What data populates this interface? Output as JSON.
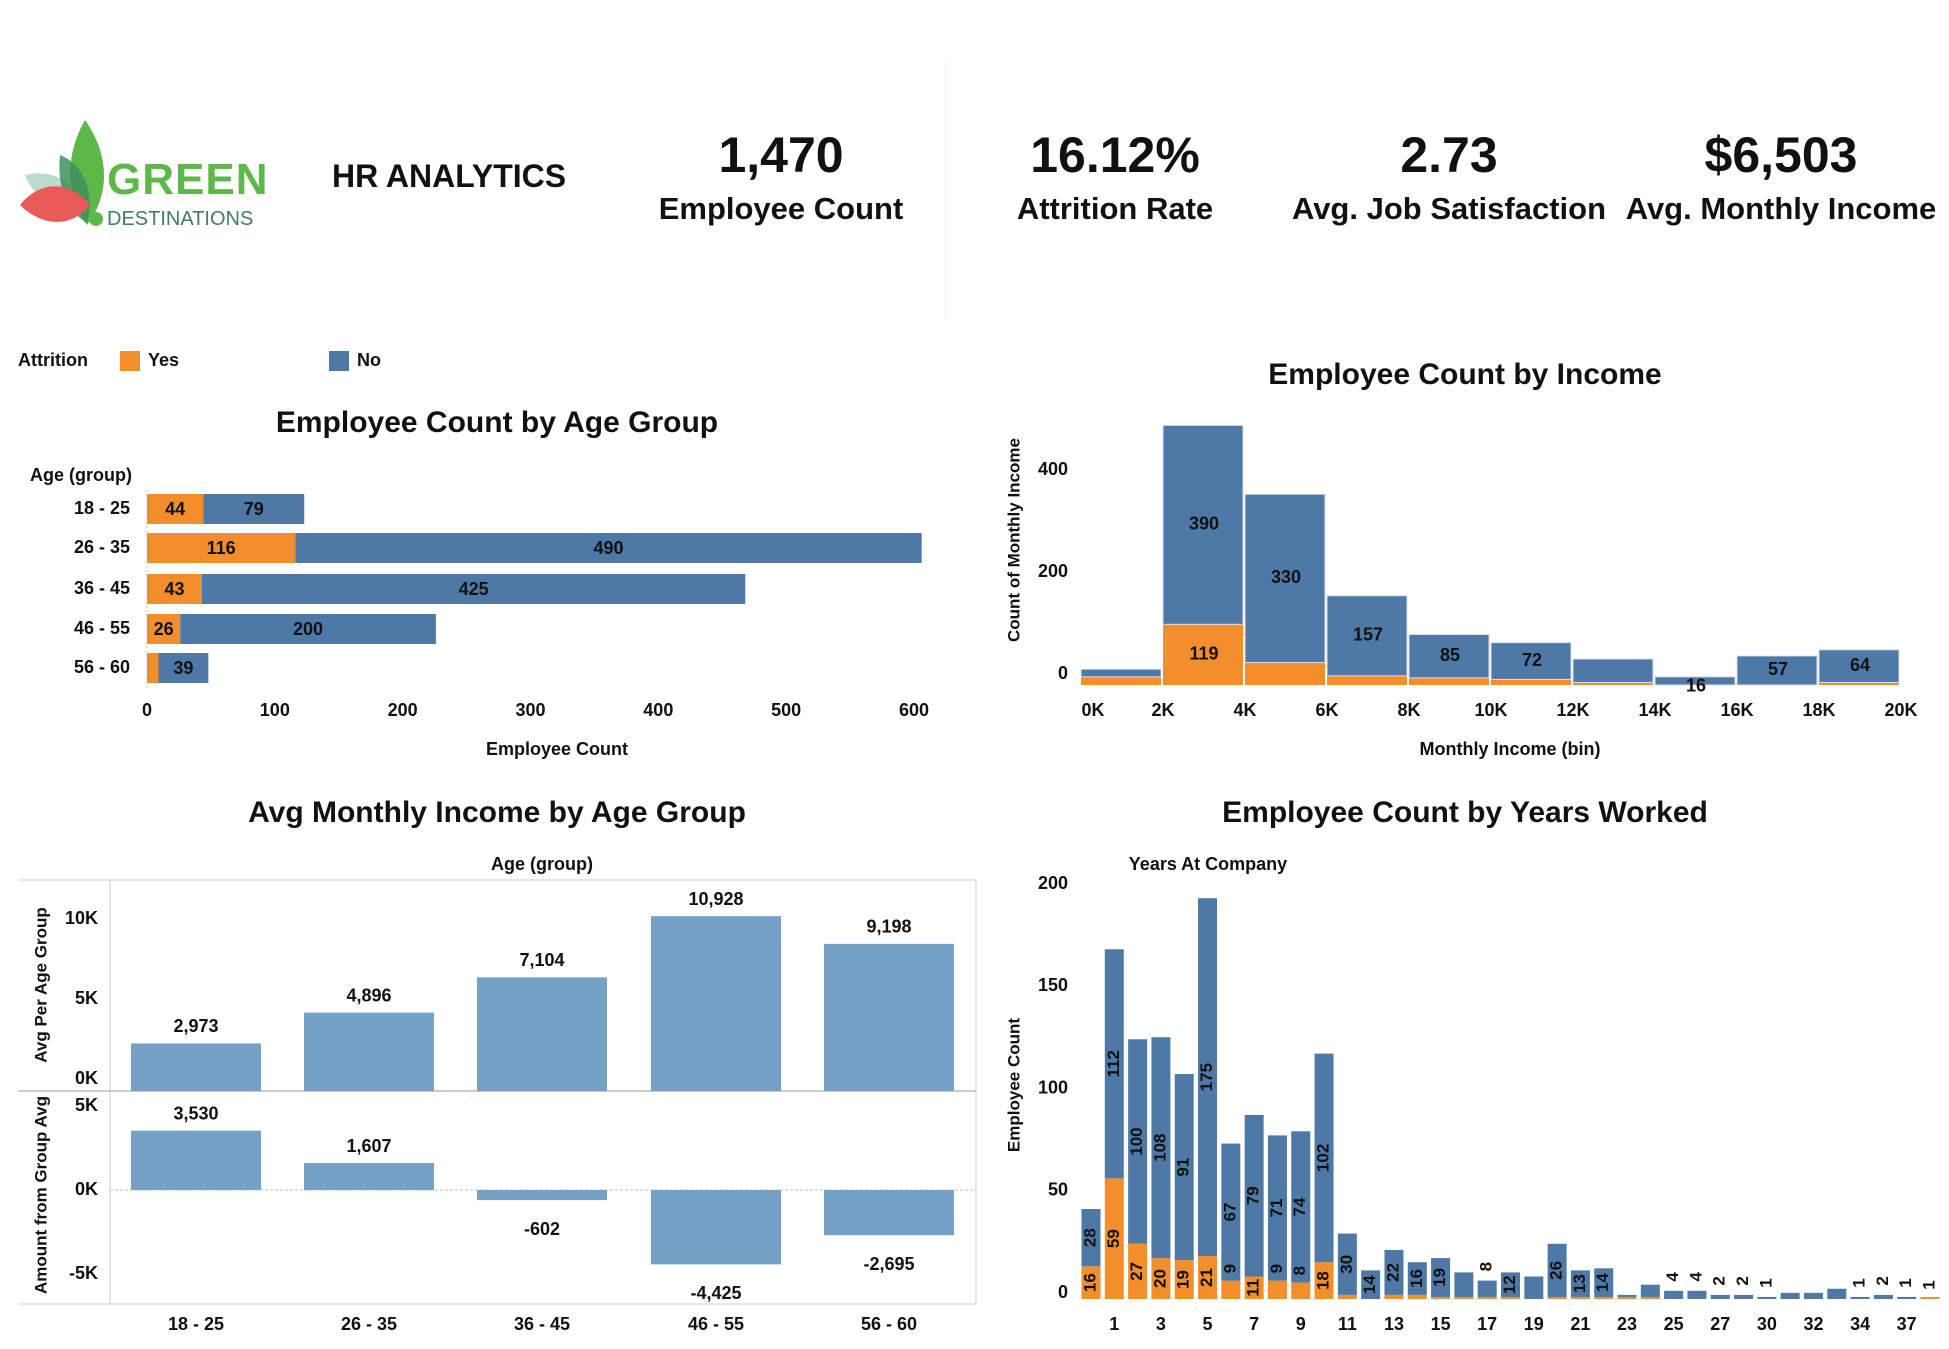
{
  "header": {
    "logo": {
      "line1": "GREEN",
      "line2": "DESTINATIONS"
    },
    "title": "HR ANALYTICS",
    "kpis": [
      {
        "value": "1,470",
        "label": "Employee Count"
      },
      {
        "value": "16.12%",
        "label": "Attrition Rate"
      },
      {
        "value": "2.73",
        "label": "Avg. Job Satisfaction"
      },
      {
        "value": "$6,503",
        "label": "Avg. Monthly Income"
      }
    ]
  },
  "legend": {
    "title": "Attrition",
    "items": [
      {
        "label": "Yes",
        "color": "#f28e2b"
      },
      {
        "label": "No",
        "color": "#4e79a7"
      }
    ]
  },
  "colors": {
    "yes": "#f28e2b",
    "no": "#4e79a7",
    "avg_bar": "#76a1c7"
  },
  "chart_data": [
    {
      "type": "bar",
      "orientation": "horizontal-stacked",
      "title": "Employee Count by Age Group",
      "ylabel": "Age (group)",
      "xlabel": "Employee Count",
      "categories": [
        "18 - 25",
        "26 - 35",
        "36 - 45",
        "46 - 55",
        "56 - 60"
      ],
      "series": [
        {
          "name": "Yes",
          "values": [
            44,
            116,
            43,
            26,
            9
          ],
          "labels": [
            "44",
            "116",
            "43",
            "26",
            null
          ]
        },
        {
          "name": "No",
          "values": [
            79,
            490,
            425,
            200,
            39
          ],
          "labels": [
            "79",
            "490",
            "425",
            "200",
            "39"
          ]
        }
      ],
      "xticks": [
        "0",
        "100",
        "200",
        "300",
        "400",
        "500",
        "600"
      ],
      "xlim": [
        0,
        650
      ]
    },
    {
      "type": "bar",
      "orientation": "histogram-stacked",
      "title": "Employee Count by Income",
      "ylabel": "Count of Monthly Income",
      "xlabel": "Monthly Income (bin)",
      "xticks": [
        "0K",
        "2K",
        "4K",
        "6K",
        "8K",
        "10K",
        "12K",
        "14K",
        "16K",
        "18K",
        "20K"
      ],
      "series": [
        {
          "name": "Yes",
          "values": [
            16,
            119,
            44,
            18,
            14,
            11,
            5,
            0,
            0,
            5
          ],
          "labels": [
            null,
            "119",
            null,
            null,
            null,
            null,
            null,
            null,
            null,
            null
          ]
        },
        {
          "name": "No",
          "values": [
            15,
            390,
            330,
            157,
            85,
            72,
            46,
            16,
            57,
            64
          ],
          "labels": [
            null,
            "390",
            "330",
            "157",
            "85",
            "72",
            null,
            "16",
            "57",
            "64"
          ]
        }
      ],
      "yticks": [
        "0",
        "200",
        "400"
      ],
      "ylim": [
        0,
        520
      ]
    },
    {
      "type": "bar",
      "title": "Avg Monthly Income by Age Group",
      "xlabel_top": "Age (group)",
      "categories": [
        "18 - 25",
        "26 - 35",
        "36 - 45",
        "46 - 55",
        "56 - 60"
      ],
      "panes": [
        {
          "ylabel": "Avg Per Age Group",
          "values": [
            2973,
            4896,
            7104,
            10928,
            9198
          ],
          "labels": [
            "2,973",
            "4,896",
            "7,104",
            "10,928",
            "9,198"
          ],
          "yticks": [
            "0K",
            "5K",
            "10K"
          ],
          "ylim": [
            0,
            13000
          ]
        },
        {
          "ylabel": "Amount from Group Avg",
          "values": [
            3530,
            1607,
            -602,
            -4425,
            -2695
          ],
          "labels": [
            "3,530",
            "1,607",
            "-602",
            "-4,425",
            "-2,695"
          ],
          "yticks": [
            "-5K",
            "0K",
            "5K"
          ],
          "ylim": [
            -6500,
            6500
          ]
        }
      ]
    },
    {
      "type": "bar",
      "orientation": "vertical-stacked",
      "title": "Employee Count by Years Worked",
      "xlabel_top": "Years At Company",
      "ylabel": "Employee Count",
      "x": [
        0,
        1,
        2,
        3,
        4,
        5,
        6,
        7,
        8,
        9,
        10,
        11,
        12,
        13,
        14,
        15,
        16,
        17,
        18,
        19,
        20,
        21,
        22,
        23,
        24,
        25,
        26,
        27,
        29,
        30,
        31,
        32,
        33,
        34,
        36,
        37,
        40
      ],
      "xticks": [
        "1",
        "3",
        "5",
        "7",
        "9",
        "11",
        "13",
        "15",
        "17",
        "19",
        "21",
        "23",
        "25",
        "27",
        "30",
        "32",
        "34",
        "37"
      ],
      "series": [
        {
          "name": "Yes",
          "values": [
            16,
            59,
            27,
            20,
            19,
            21,
            9,
            11,
            9,
            8,
            18,
            2,
            0,
            2,
            2,
            1,
            1,
            1,
            1,
            0,
            1,
            1,
            1,
            1,
            1,
            0,
            0,
            0,
            0,
            0,
            0,
            0,
            0,
            0,
            0,
            0,
            1
          ],
          "labels": [
            "16",
            "59",
            "27",
            "20",
            "19",
            "21",
            "9",
            "11",
            "9",
            "8",
            "18",
            null,
            null,
            null,
            null,
            null,
            null,
            null,
            null,
            null,
            null,
            null,
            null,
            null,
            null,
            null,
            null,
            null,
            null,
            null,
            null,
            null,
            null,
            null,
            null,
            null,
            "1"
          ]
        },
        {
          "name": "No",
          "values": [
            28,
            112,
            100,
            108,
            91,
            175,
            67,
            79,
            71,
            74,
            102,
            30,
            14,
            22,
            16,
            19,
            12,
            8,
            12,
            11,
            26,
            13,
            14,
            1,
            6,
            4,
            4,
            2,
            2,
            1,
            3,
            3,
            5,
            1,
            2,
            1,
            0
          ],
          "labels": [
            "28",
            "112",
            "100",
            "108",
            "91",
            "175",
            "67",
            "79",
            "71",
            "74",
            "102",
            "30",
            "14",
            "22",
            "16",
            "19",
            null,
            "8",
            "12",
            null,
            "26",
            "13",
            "14",
            null,
            null,
            "4",
            "4",
            "2",
            "2",
            "1",
            null,
            null,
            null,
            "1",
            "2",
            "1",
            null
          ]
        }
      ],
      "yticks": [
        "0",
        "50",
        "100",
        "150",
        "200"
      ],
      "ylim": [
        0,
        205
      ]
    }
  ]
}
